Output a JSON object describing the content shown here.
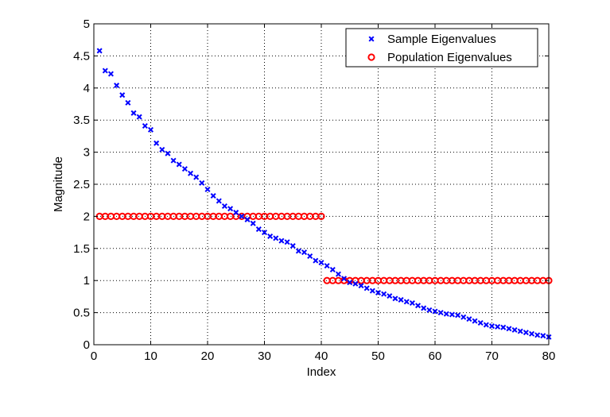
{
  "chart_data": {
    "type": "scatter",
    "xlabel": "Index",
    "ylabel": "Magnitude",
    "xlim": [
      0,
      80
    ],
    "ylim": [
      0,
      5
    ],
    "xticks": [
      "0",
      "10",
      "20",
      "30",
      "40",
      "50",
      "60",
      "70",
      "80"
    ],
    "yticks": [
      "0",
      "0.5",
      "1",
      "1.5",
      "2",
      "2.5",
      "3",
      "3.5",
      "4",
      "4.5",
      "5"
    ],
    "grid": true,
    "legend_position": "top-right",
    "series": [
      {
        "name": "Sample Eigenvalues",
        "marker": "x",
        "color": "#0000ff",
        "x": [
          1,
          2,
          3,
          4,
          5,
          6,
          7,
          8,
          9,
          10,
          11,
          12,
          13,
          14,
          15,
          16,
          17,
          18,
          19,
          20,
          21,
          22,
          23,
          24,
          25,
          26,
          27,
          28,
          29,
          30,
          31,
          32,
          33,
          34,
          35,
          36,
          37,
          38,
          39,
          40,
          41,
          42,
          43,
          44,
          45,
          46,
          47,
          48,
          49,
          50,
          51,
          52,
          53,
          54,
          55,
          56,
          57,
          58,
          59,
          60,
          61,
          62,
          63,
          64,
          65,
          66,
          67,
          68,
          69,
          70,
          71,
          72,
          73,
          74,
          75,
          76,
          77,
          78,
          79,
          80
        ],
        "y": [
          4.58,
          4.27,
          4.22,
          4.04,
          3.89,
          3.77,
          3.61,
          3.55,
          3.41,
          3.35,
          3.14,
          3.04,
          2.98,
          2.87,
          2.81,
          2.74,
          2.67,
          2.61,
          2.52,
          2.42,
          2.32,
          2.24,
          2.16,
          2.12,
          2.06,
          2.0,
          1.95,
          1.89,
          1.8,
          1.75,
          1.69,
          1.66,
          1.62,
          1.6,
          1.54,
          1.46,
          1.44,
          1.38,
          1.31,
          1.28,
          1.23,
          1.17,
          1.1,
          1.03,
          0.97,
          0.95,
          0.92,
          0.88,
          0.84,
          0.81,
          0.79,
          0.76,
          0.72,
          0.7,
          0.67,
          0.65,
          0.61,
          0.57,
          0.54,
          0.52,
          0.5,
          0.48,
          0.47,
          0.46,
          0.43,
          0.4,
          0.37,
          0.34,
          0.31,
          0.29,
          0.28,
          0.27,
          0.25,
          0.23,
          0.21,
          0.19,
          0.17,
          0.15,
          0.14,
          0.12
        ]
      },
      {
        "name": "Population Eigenvalues",
        "marker": "o",
        "color": "#ff0000",
        "x": [
          1,
          2,
          3,
          4,
          5,
          6,
          7,
          8,
          9,
          10,
          11,
          12,
          13,
          14,
          15,
          16,
          17,
          18,
          19,
          20,
          21,
          22,
          23,
          24,
          25,
          26,
          27,
          28,
          29,
          30,
          31,
          32,
          33,
          34,
          35,
          36,
          37,
          38,
          39,
          40,
          41,
          42,
          43,
          44,
          45,
          46,
          47,
          48,
          49,
          50,
          51,
          52,
          53,
          54,
          55,
          56,
          57,
          58,
          59,
          60,
          61,
          62,
          63,
          64,
          65,
          66,
          67,
          68,
          69,
          70,
          71,
          72,
          73,
          74,
          75,
          76,
          77,
          78,
          79,
          80
        ],
        "y": [
          2,
          2,
          2,
          2,
          2,
          2,
          2,
          2,
          2,
          2,
          2,
          2,
          2,
          2,
          2,
          2,
          2,
          2,
          2,
          2,
          2,
          2,
          2,
          2,
          2,
          2,
          2,
          2,
          2,
          2,
          2,
          2,
          2,
          2,
          2,
          2,
          2,
          2,
          2,
          2,
          1,
          1,
          1,
          1,
          1,
          1,
          1,
          1,
          1,
          1,
          1,
          1,
          1,
          1,
          1,
          1,
          1,
          1,
          1,
          1,
          1,
          1,
          1,
          1,
          1,
          1,
          1,
          1,
          1,
          1,
          1,
          1,
          1,
          1,
          1,
          1,
          1,
          1,
          1,
          1
        ]
      }
    ]
  }
}
